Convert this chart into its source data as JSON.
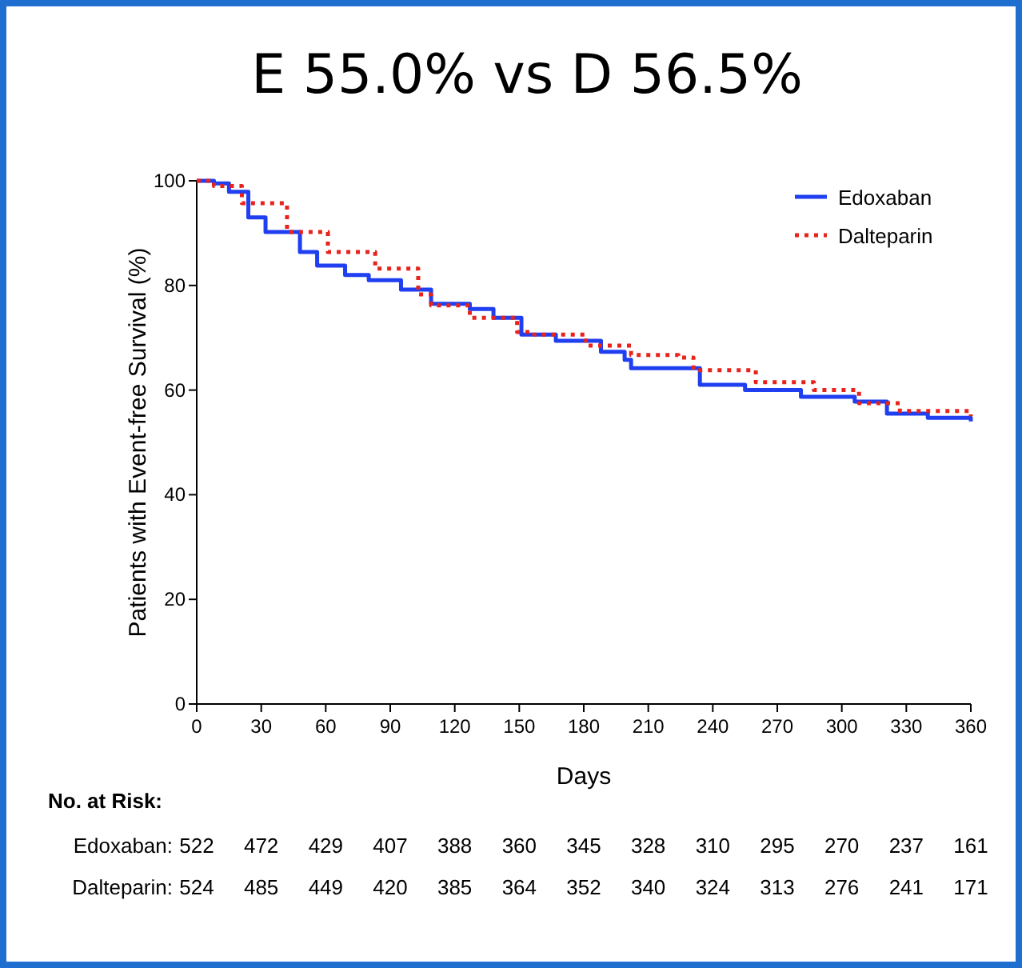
{
  "chart_data": {
    "type": "step",
    "title": "E 55.0% vs D 56.5%",
    "xlabel": "Days",
    "ylabel": "Patients with Event-free Survival (%)",
    "xlim": [
      0,
      360
    ],
    "xticks": [
      0,
      30,
      60,
      90,
      120,
      150,
      180,
      210,
      240,
      270,
      300,
      330,
      360
    ],
    "ylim": [
      0,
      100
    ],
    "yticks": [
      0,
      20,
      40,
      60,
      80,
      100
    ],
    "legend": "top right",
    "grid": false,
    "series": [
      {
        "name": "Edoxaban",
        "color": "#1f3ff0",
        "line_style": "solid",
        "x": [
          0,
          8,
          15,
          24,
          32,
          48,
          56,
          69,
          80,
          95,
          109,
          127,
          138,
          151,
          167,
          188,
          199,
          202,
          234,
          255,
          281,
          306,
          321,
          340,
          360
        ],
        "values": [
          100,
          99.5,
          97.9,
          93,
          90.2,
          86.4,
          83.8,
          82,
          81,
          79.2,
          76.5,
          75.5,
          73.8,
          70.6,
          69.4,
          67.3,
          65.8,
          64.2,
          61,
          60,
          58.7,
          57.8,
          55.5,
          54.7,
          54
        ]
      },
      {
        "name": "Dalteparin",
        "color": "#e8231c",
        "line_style": "dotted",
        "x": [
          0,
          8,
          21,
          42,
          61,
          83,
          103,
          109,
          127,
          149,
          157,
          181,
          202,
          224,
          231,
          260,
          287,
          308,
          327,
          360
        ],
        "values": [
          100,
          99,
          95.7,
          90.2,
          86.4,
          83.2,
          78.3,
          76.2,
          73.8,
          71.1,
          70.6,
          68.5,
          66.7,
          66.2,
          63.8,
          61.5,
          60,
          57.5,
          56,
          55
        ]
      }
    ],
    "annotations": [
      "No. at Risk:",
      "Edoxaban: 522 472 429 407 388 360 345 328 310 295 270 237 161",
      "Dalteparin: 524 485 449 420 385 364 352 340 324 313 276 241 171"
    ]
  }
}
